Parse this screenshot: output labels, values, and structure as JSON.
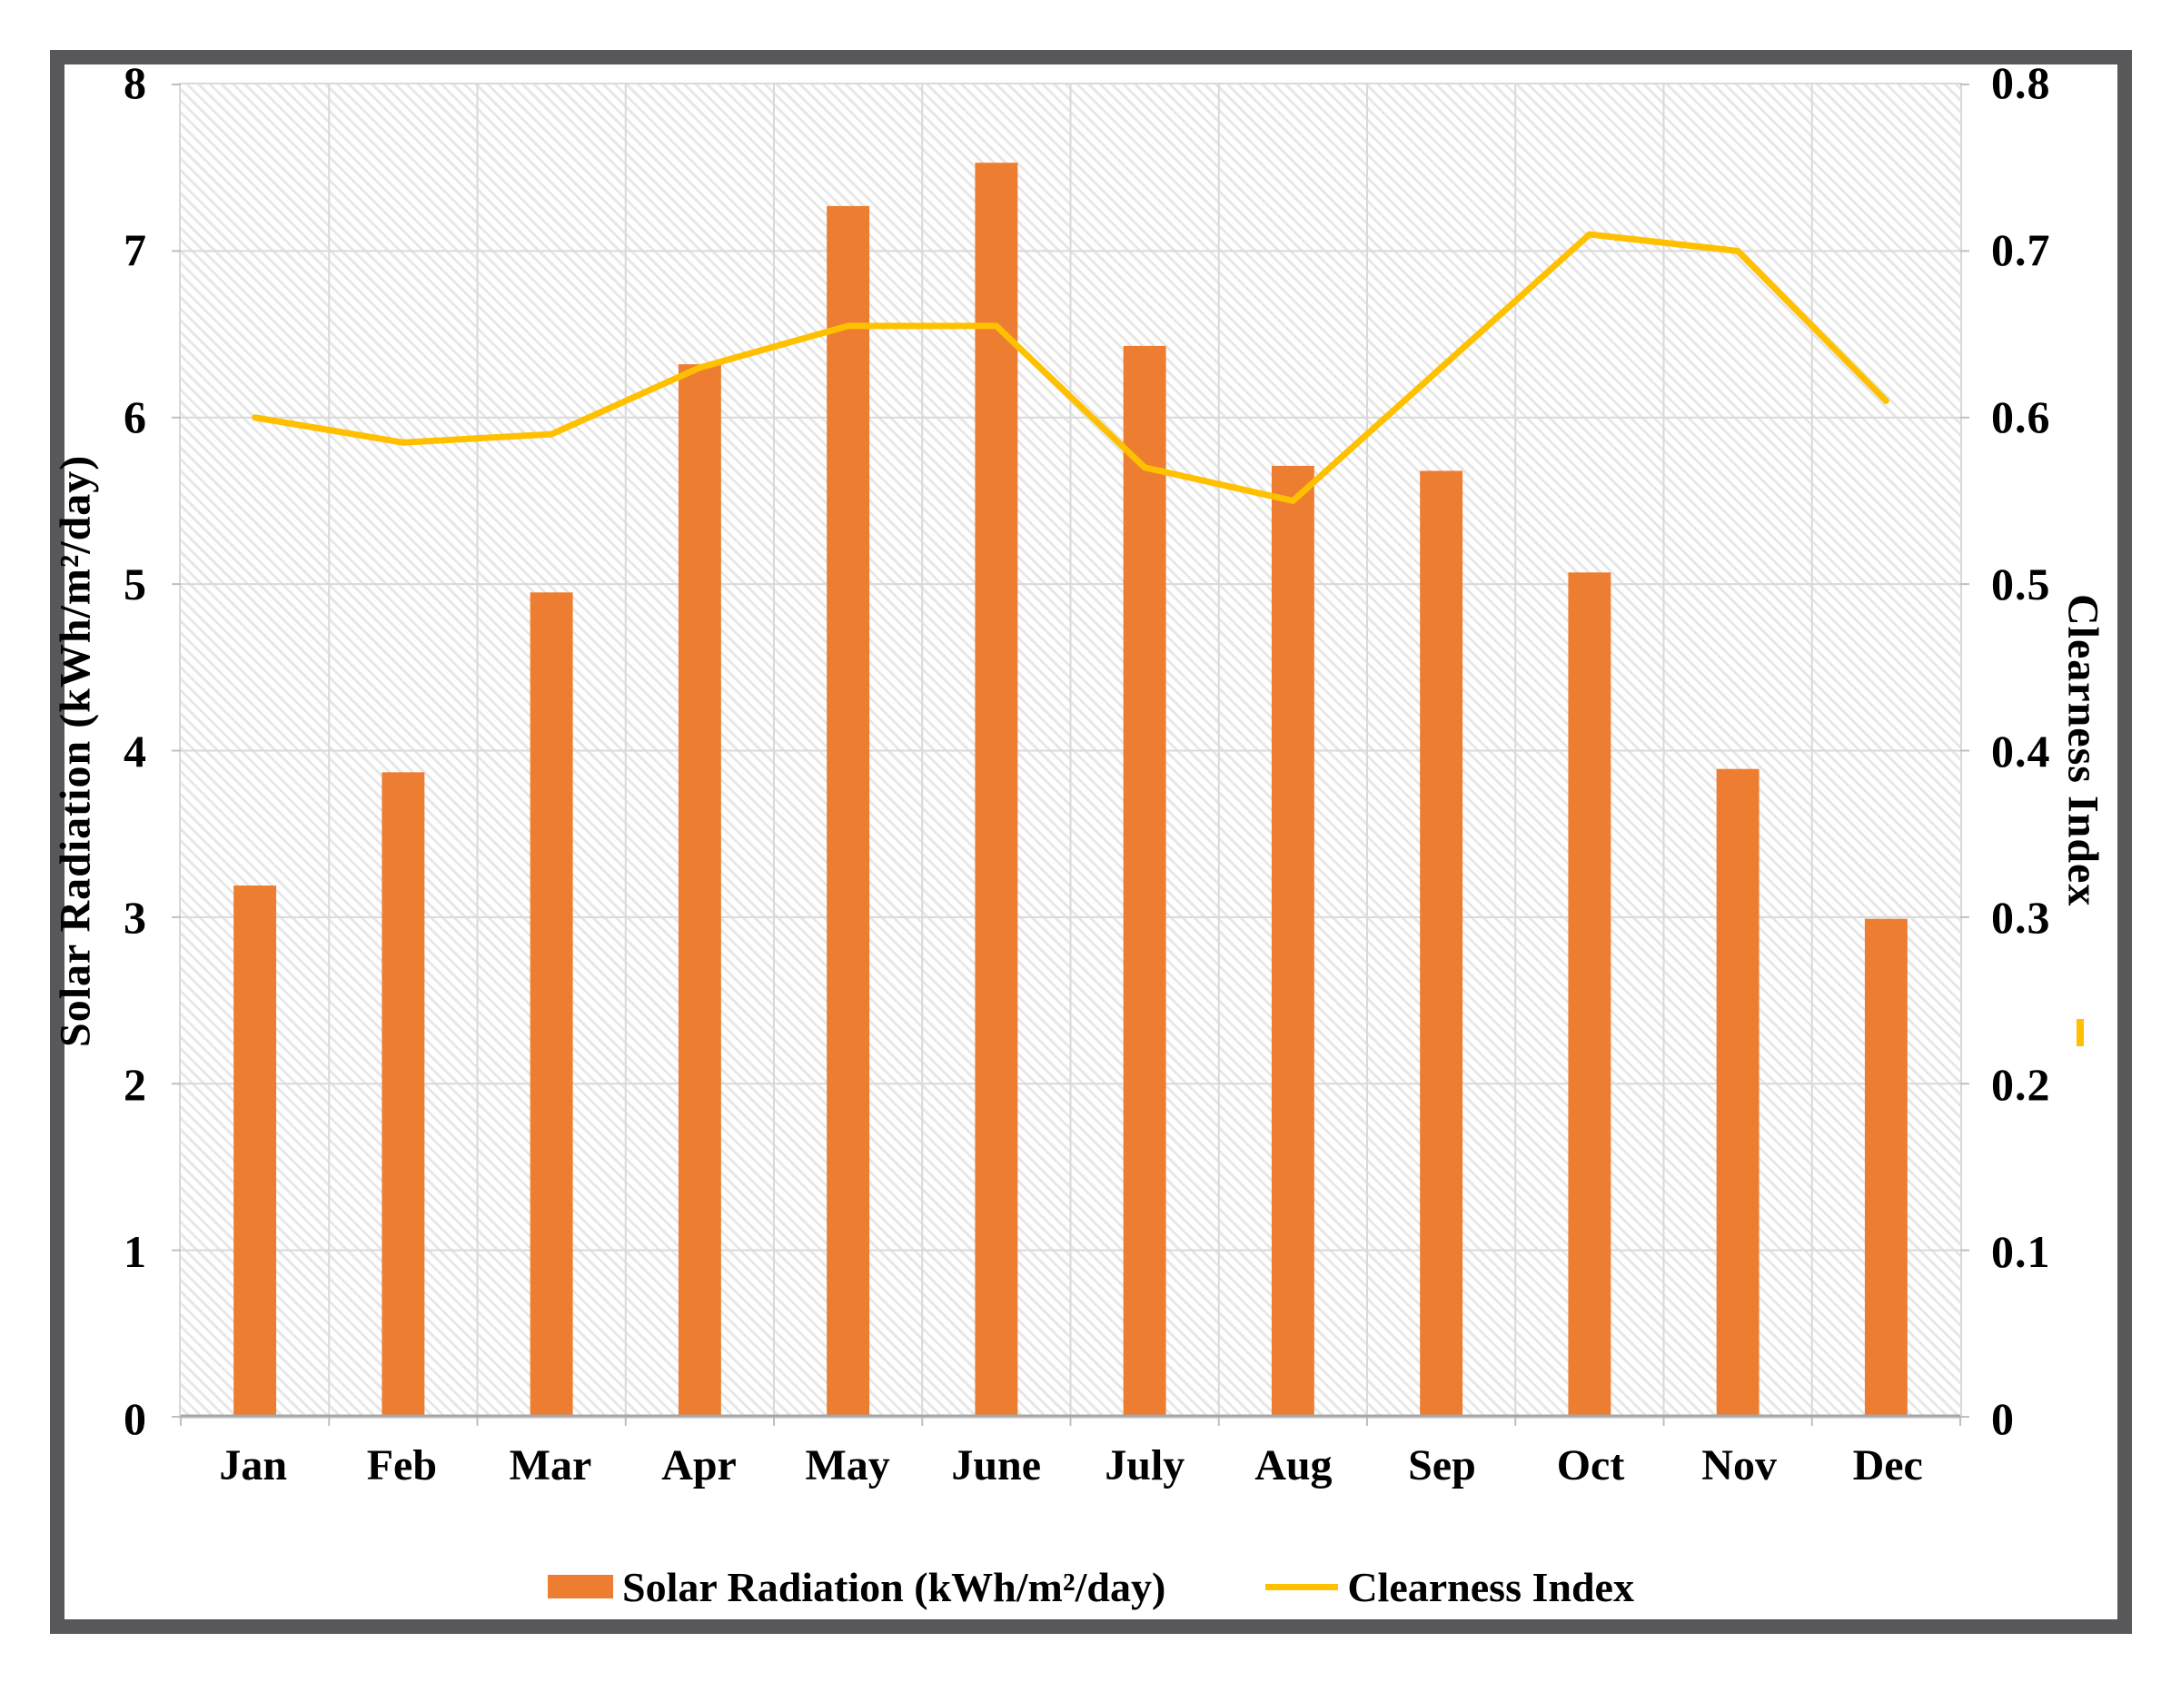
{
  "chart_data": {
    "type": "combo-bar-line",
    "categories": [
      "Jan",
      "Feb",
      "Mar",
      "Apr",
      "May",
      "June",
      "July",
      "Aug",
      "Sep",
      "Oct",
      "Nov",
      "Dec"
    ],
    "series": [
      {
        "name": "Solar Radiation (kWh/m²/day)",
        "type": "bar",
        "y_axis": "left",
        "values": [
          3.19,
          3.87,
          4.95,
          6.32,
          7.27,
          7.53,
          6.43,
          5.71,
          5.68,
          5.07,
          3.89,
          2.99
        ]
      },
      {
        "name": "Clearness Index",
        "type": "line",
        "y_axis": "right",
        "values": [
          0.6,
          0.585,
          0.59,
          0.63,
          0.655,
          0.655,
          0.57,
          0.55,
          0.63,
          0.71,
          0.7,
          0.61
        ]
      }
    ],
    "left_axis": {
      "title": "Solar Radiation (kWh/m²/day)",
      "min": 0,
      "max": 8,
      "tick_labels": [
        "8",
        "7",
        "6",
        "5",
        "4",
        "3",
        "2",
        "1",
        "0"
      ]
    },
    "right_axis": {
      "title": "Clearness Index",
      "min": 0,
      "max": 0.8,
      "tick_labels": [
        "0.8",
        "0.7",
        "0.6",
        "0.5",
        "0.4",
        "0.3",
        "0.2",
        "0.1",
        "0"
      ]
    },
    "x_axis": {
      "tick_labels": [
        "Jan",
        "Feb",
        "Mar",
        "Apr",
        "May",
        "June",
        "July",
        "Aug",
        "Sep",
        "Oct",
        "Nov",
        "Dec"
      ]
    },
    "grid": true,
    "plot_background": "diagonal-hatch",
    "legend_position": "bottom"
  },
  "legend": {
    "entries": [
      {
        "label": "Solar Radiation (kWh/m²/day)",
        "swatch": "bar"
      },
      {
        "label": "Clearness Index",
        "swatch": "line"
      }
    ]
  },
  "colors": {
    "bar": "#ED7D31",
    "line": "#FFC000",
    "grid": "#D9D9D9",
    "axis_line": "#A6A6A6",
    "tick": "#BFBFBF",
    "frame": "#58585A",
    "hatch": "#E7E7E7",
    "text": "#000000"
  }
}
